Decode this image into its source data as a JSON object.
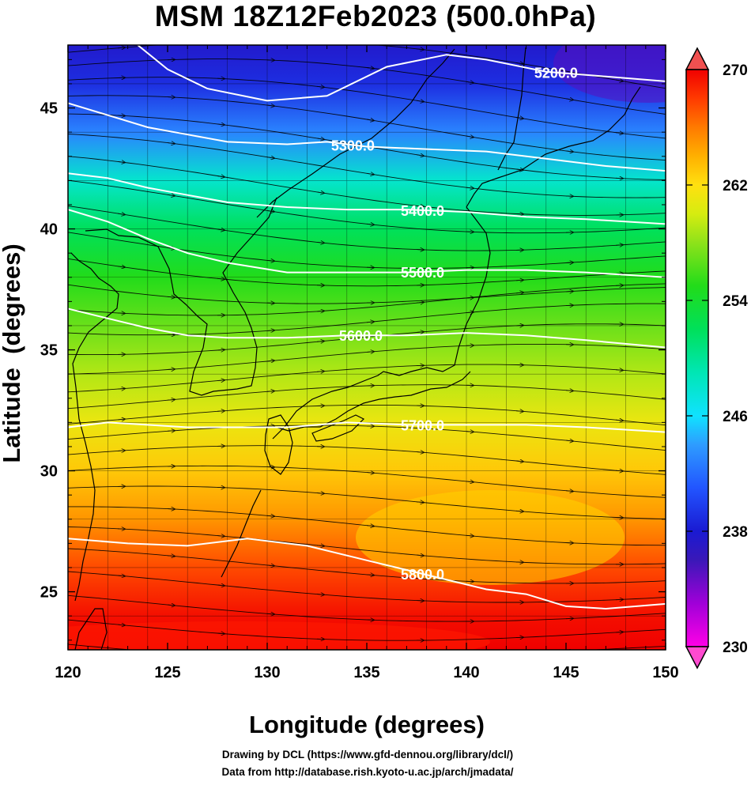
{
  "chart_data": {
    "type": "heatmap",
    "title": "MSM 18Z12Feb2023 (500.0hPa)",
    "xlabel": "Longitude (degrees)",
    "ylabel": "Latitude  (degrees)",
    "xlim": [
      120,
      150
    ],
    "ylim": [
      22.6,
      47.6
    ],
    "x_ticks": [
      120,
      125,
      130,
      135,
      140,
      145,
      150
    ],
    "y_ticks": [
      25,
      30,
      35,
      40,
      45
    ],
    "colorbar": {
      "range": [
        230,
        270
      ],
      "ticks": [
        230,
        238,
        246,
        254,
        262,
        270
      ],
      "colors": [
        {
          "v": 230,
          "c": "#ff00e6"
        },
        {
          "v": 233,
          "c": "#a000d8"
        },
        {
          "v": 236,
          "c": "#3a18b8"
        },
        {
          "v": 238,
          "c": "#1a1ad2"
        },
        {
          "v": 241,
          "c": "#2255ff"
        },
        {
          "v": 244,
          "c": "#2e9cff"
        },
        {
          "v": 246,
          "c": "#10e2ff"
        },
        {
          "v": 249,
          "c": "#00e6b4"
        },
        {
          "v": 252,
          "c": "#00e05a"
        },
        {
          "v": 255,
          "c": "#22dc1a"
        },
        {
          "v": 258,
          "c": "#8ee21a"
        },
        {
          "v": 260,
          "c": "#d6ec10"
        },
        {
          "v": 262,
          "c": "#ffe010"
        },
        {
          "v": 264,
          "c": "#ffb000"
        },
        {
          "v": 266,
          "c": "#ff7a00"
        },
        {
          "v": 268,
          "c": "#ff3a00"
        },
        {
          "v": 270,
          "c": "#f00000"
        }
      ],
      "over_color": "#f05050",
      "under_color": "#ff4ad0"
    },
    "temperature_profile": [
      {
        "lat": 47.6,
        "t": 237.5
      },
      {
        "lat": 46,
        "t": 239
      },
      {
        "lat": 44,
        "t": 243
      },
      {
        "lat": 42,
        "t": 248
      },
      {
        "lat": 40,
        "t": 252
      },
      {
        "lat": 38,
        "t": 255
      },
      {
        "lat": 36,
        "t": 257
      },
      {
        "lat": 34,
        "t": 259
      },
      {
        "lat": 32,
        "t": 261
      },
      {
        "lat": 30,
        "t": 263
      },
      {
        "lat": 28,
        "t": 265
      },
      {
        "lat": 26,
        "t": 267.5
      },
      {
        "lat": 24,
        "t": 269.5
      },
      {
        "lat": 22.6,
        "t": 271
      }
    ],
    "height_contours": [
      {
        "value": 5200,
        "label": "5200.0",
        "label_lon": 144.5,
        "points": [
          [
            123.5,
            47.6
          ],
          [
            125,
            46.6
          ],
          [
            127,
            45.8
          ],
          [
            130,
            45.3
          ],
          [
            133,
            45.5
          ],
          [
            136,
            46.7
          ],
          [
            139,
            47.2
          ],
          [
            141,
            47.0
          ],
          [
            144,
            46.5
          ],
          [
            147,
            46.3
          ],
          [
            150,
            46.1
          ]
        ]
      },
      {
        "value": 5300,
        "label": "5300.0",
        "label_lon": 134.3,
        "points": [
          [
            120,
            45.2
          ],
          [
            122,
            44.7
          ],
          [
            124,
            44.2
          ],
          [
            126,
            43.9
          ],
          [
            128,
            43.6
          ],
          [
            131,
            43.5
          ],
          [
            133,
            43.6
          ],
          [
            135,
            43.4
          ],
          [
            138,
            43.3
          ],
          [
            141,
            43.2
          ],
          [
            144,
            42.9
          ],
          [
            147,
            42.6
          ],
          [
            150,
            42.4
          ]
        ]
      },
      {
        "value": 5400,
        "label": "5400.0",
        "label_lon": 137.8,
        "points": [
          [
            120,
            42.3
          ],
          [
            122,
            42.1
          ],
          [
            124,
            41.7
          ],
          [
            126,
            41.4
          ],
          [
            128,
            41.1
          ],
          [
            131,
            40.9
          ],
          [
            134,
            40.8
          ],
          [
            137,
            40.8
          ],
          [
            140,
            40.7
          ],
          [
            143,
            40.5
          ],
          [
            146,
            40.4
          ],
          [
            150,
            40.2
          ]
        ]
      },
      {
        "value": 5500,
        "label": "5500.0",
        "label_lon": 137.8,
        "points": [
          [
            120,
            40.8
          ],
          [
            122,
            40.3
          ],
          [
            124,
            39.6
          ],
          [
            126,
            39.0
          ],
          [
            128,
            38.6
          ],
          [
            131,
            38.2
          ],
          [
            134,
            38.2
          ],
          [
            137,
            38.2
          ],
          [
            140,
            38.3
          ],
          [
            143,
            38.3
          ],
          [
            146,
            38.2
          ],
          [
            150,
            38.0
          ]
        ]
      },
      {
        "value": 5600,
        "label": "5600.0",
        "label_lon": 134.7,
        "points": [
          [
            120,
            36.7
          ],
          [
            122,
            36.3
          ],
          [
            124,
            35.9
          ],
          [
            126,
            35.6
          ],
          [
            128,
            35.5
          ],
          [
            131,
            35.5
          ],
          [
            134,
            35.6
          ],
          [
            137,
            35.6
          ],
          [
            140,
            35.7
          ],
          [
            143,
            35.6
          ],
          [
            146,
            35.4
          ],
          [
            150,
            35.1
          ]
        ]
      },
      {
        "value": 5700,
        "label": "5700.0",
        "label_lon": 137.8,
        "points": [
          [
            120,
            31.8
          ],
          [
            122,
            32.0
          ],
          [
            124,
            31.9
          ],
          [
            126,
            31.8
          ],
          [
            128,
            31.8
          ],
          [
            131,
            31.8
          ],
          [
            134,
            32.0
          ],
          [
            137,
            31.9
          ],
          [
            140,
            31.9
          ],
          [
            143,
            31.9
          ],
          [
            146,
            31.8
          ],
          [
            150,
            31.6
          ]
        ]
      },
      {
        "value": 5800,
        "label": "5800.0",
        "label_lon": 137.8,
        "points": [
          [
            120,
            27.2
          ],
          [
            123,
            27.0
          ],
          [
            126,
            26.9
          ],
          [
            129,
            27.2
          ],
          [
            132,
            26.9
          ],
          [
            135,
            26.3
          ],
          [
            138,
            25.7
          ],
          [
            141,
            25.1
          ],
          [
            143,
            24.9
          ],
          [
            145,
            24.4
          ],
          [
            147,
            24.3
          ],
          [
            150,
            24.5
          ]
        ]
      }
    ],
    "wind": {
      "direction": "westerly",
      "streamlines_shown": true
    }
  },
  "credits": {
    "line1": "Drawing by DCL (https://www.gfd-dennou.org/library/dcl/)",
    "line2": "Data from http://database.rish.kyoto-u.ac.jp/arch/jmadata/"
  }
}
